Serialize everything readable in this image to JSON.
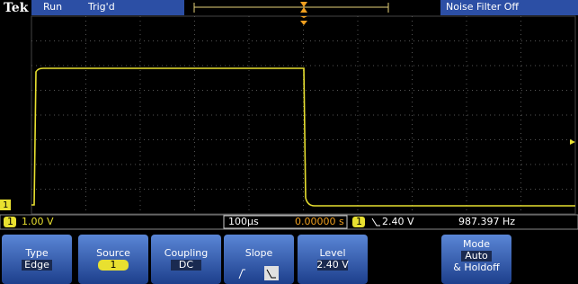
{
  "status_bar": {
    "brand": "Tek",
    "run_state": "Run",
    "trigger_state": "Trig'd",
    "noise_filter": "Noise Filter Off"
  },
  "screen": {
    "ground_marker": "1"
  },
  "readout": {
    "channel": "1",
    "volts_per_div": "1.00 V",
    "time_per_div": "100µs",
    "trigger_position": "0.00000 s",
    "trigger_channel": "1",
    "trigger_level": "2.40 V",
    "frequency": "987.397 Hz"
  },
  "menu": [
    {
      "label": "Type",
      "value": "Edge"
    },
    {
      "label": "Source",
      "value": "1"
    },
    {
      "label": "Coupling",
      "value": "DC"
    },
    {
      "label": "Slope"
    },
    {
      "label": "Level",
      "value": "2.40 V"
    },
    {
      "label": "Mode",
      "value": "Auto",
      "extra": "& Holdoff"
    }
  ]
}
